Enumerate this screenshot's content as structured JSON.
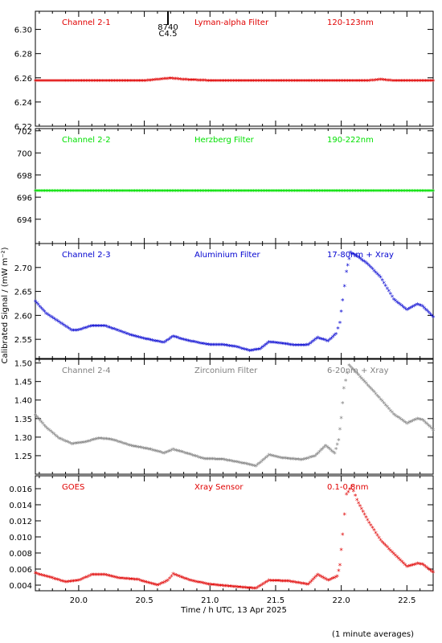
{
  "y_axis_title": "Calibrated Signal / (mW m⁻²)",
  "x_axis_title": "Time / h UTC, 13 Apr 2025",
  "footnote": "(1 minute averages)",
  "chart_data": {
    "type": "scatter",
    "x_range": [
      19.67,
      22.7
    ],
    "x_ticks": [
      "20.0",
      "20.5",
      "21.0",
      "21.5",
      "22.0",
      "22.5"
    ],
    "flare_marker": {
      "x": 20.68,
      "labels": [
        "8740",
        "C4.5"
      ]
    },
    "panels": [
      {
        "channel": "Channel 2-1",
        "filter": "Lyman-alpha Filter",
        "band": "120-123nm",
        "color": "#e00000",
        "ylim": [
          6.22,
          6.315
        ],
        "y_ticks": [
          "6.22",
          "6.24",
          "6.26",
          "6.28",
          "6.30"
        ],
        "points": [
          [
            19.67,
            6.257
          ],
          [
            20.0,
            6.257
          ],
          [
            20.5,
            6.257
          ],
          [
            20.6,
            6.258
          ],
          [
            20.7,
            6.259
          ],
          [
            20.8,
            6.258
          ],
          [
            21.0,
            6.257
          ],
          [
            21.5,
            6.257
          ],
          [
            22.0,
            6.257
          ],
          [
            22.2,
            6.257
          ],
          [
            22.3,
            6.258
          ],
          [
            22.4,
            6.257
          ],
          [
            22.7,
            6.257
          ]
        ]
      },
      {
        "channel": "Channel 2-2",
        "filter": "Herzberg Filter",
        "band": "190-222nm",
        "color": "#00e000",
        "ylim": [
          691.8,
          702.2
        ],
        "y_ticks": [
          "694",
          "696",
          "698",
          "700",
          "702"
        ],
        "points": [
          [
            19.67,
            696.5
          ],
          [
            20.5,
            696.5
          ],
          [
            21.0,
            696.5
          ],
          [
            21.5,
            696.5
          ],
          [
            22.0,
            696.5
          ],
          [
            22.7,
            696.5
          ]
        ]
      },
      {
        "channel": "Channel 2-3",
        "filter": "Aluminium Filter",
        "band": "17-80nm + Xray",
        "color": "#0000d0",
        "ylim": [
          2.51,
          2.75
        ],
        "y_ticks": [
          "2.55",
          "2.60",
          "2.65",
          "2.70"
        ],
        "points": [
          [
            19.67,
            2.628
          ],
          [
            19.75,
            2.603
          ],
          [
            19.85,
            2.585
          ],
          [
            19.95,
            2.567
          ],
          [
            20.0,
            2.568
          ],
          [
            20.1,
            2.577
          ],
          [
            20.2,
            2.577
          ],
          [
            20.3,
            2.567
          ],
          [
            20.4,
            2.557
          ],
          [
            20.55,
            2.547
          ],
          [
            20.65,
            2.542
          ],
          [
            20.72,
            2.555
          ],
          [
            20.8,
            2.548
          ],
          [
            20.9,
            2.542
          ],
          [
            21.0,
            2.537
          ],
          [
            21.1,
            2.537
          ],
          [
            21.2,
            2.533
          ],
          [
            21.3,
            2.525
          ],
          [
            21.38,
            2.528
          ],
          [
            21.45,
            2.543
          ],
          [
            21.55,
            2.54
          ],
          [
            21.65,
            2.536
          ],
          [
            21.75,
            2.537
          ],
          [
            21.82,
            2.552
          ],
          [
            21.9,
            2.545
          ],
          [
            21.96,
            2.56
          ],
          [
            21.99,
            2.583
          ],
          [
            22.01,
            2.63
          ],
          [
            22.04,
            2.69
          ],
          [
            22.07,
            2.73
          ],
          [
            22.12,
            2.722
          ],
          [
            22.2,
            2.706
          ],
          [
            22.3,
            2.678
          ],
          [
            22.4,
            2.632
          ],
          [
            22.5,
            2.61
          ],
          [
            22.58,
            2.622
          ],
          [
            22.62,
            2.618
          ],
          [
            22.7,
            2.595
          ]
        ]
      },
      {
        "channel": "Channel 2-4",
        "filter": "Zirconium Filter",
        "band": "6-20nm + Xray",
        "color": "#808080",
        "ylim": [
          1.2,
          1.51
        ],
        "y_ticks": [
          "1.25",
          "1.30",
          "1.35",
          "1.40",
          "1.45",
          "1.50"
        ],
        "points": [
          [
            19.67,
            1.358
          ],
          [
            19.75,
            1.325
          ],
          [
            19.85,
            1.295
          ],
          [
            19.95,
            1.28
          ],
          [
            20.05,
            1.285
          ],
          [
            20.15,
            1.295
          ],
          [
            20.25,
            1.292
          ],
          [
            20.4,
            1.275
          ],
          [
            20.55,
            1.265
          ],
          [
            20.65,
            1.255
          ],
          [
            20.72,
            1.265
          ],
          [
            20.82,
            1.255
          ],
          [
            20.95,
            1.24
          ],
          [
            21.1,
            1.238
          ],
          [
            21.25,
            1.228
          ],
          [
            21.35,
            1.22
          ],
          [
            21.45,
            1.25
          ],
          [
            21.55,
            1.242
          ],
          [
            21.7,
            1.237
          ],
          [
            21.8,
            1.247
          ],
          [
            21.88,
            1.275
          ],
          [
            21.95,
            1.255
          ],
          [
            21.98,
            1.29
          ],
          [
            22.0,
            1.35
          ],
          [
            22.02,
            1.43
          ],
          [
            22.06,
            1.492
          ],
          [
            22.12,
            1.47
          ],
          [
            22.25,
            1.42
          ],
          [
            22.4,
            1.36
          ],
          [
            22.5,
            1.335
          ],
          [
            22.58,
            1.348
          ],
          [
            22.62,
            1.345
          ],
          [
            22.7,
            1.318
          ]
        ]
      },
      {
        "channel": "GOES",
        "filter": "Xray Sensor",
        "band": "0.1-0.8nm",
        "color": "#e00000",
        "ylim": [
          0.0033,
          0.0176
        ],
        "y_ticks": [
          "0.004",
          "0.006",
          "0.008",
          "0.010",
          "0.012",
          "0.014",
          "0.016"
        ],
        "points": [
          [
            19.67,
            0.0054
          ],
          [
            19.8,
            0.0048
          ],
          [
            19.9,
            0.0043
          ],
          [
            20.0,
            0.0045
          ],
          [
            20.1,
            0.0052
          ],
          [
            20.2,
            0.0052
          ],
          [
            20.3,
            0.0048
          ],
          [
            20.45,
            0.0046
          ],
          [
            20.6,
            0.0039
          ],
          [
            20.68,
            0.0045
          ],
          [
            20.72,
            0.0053
          ],
          [
            20.85,
            0.0045
          ],
          [
            21.0,
            0.004
          ],
          [
            21.2,
            0.0037
          ],
          [
            21.35,
            0.0035
          ],
          [
            21.45,
            0.0045
          ],
          [
            21.6,
            0.0044
          ],
          [
            21.75,
            0.004
          ],
          [
            21.82,
            0.0052
          ],
          [
            21.9,
            0.0045
          ],
          [
            21.97,
            0.005
          ],
          [
            21.99,
            0.0064
          ],
          [
            22.01,
            0.0102
          ],
          [
            22.04,
            0.0152
          ],
          [
            22.08,
            0.0162
          ],
          [
            22.12,
            0.0145
          ],
          [
            22.2,
            0.012
          ],
          [
            22.3,
            0.0095
          ],
          [
            22.4,
            0.0078
          ],
          [
            22.5,
            0.0062
          ],
          [
            22.58,
            0.0066
          ],
          [
            22.62,
            0.0065
          ],
          [
            22.7,
            0.0055
          ]
        ]
      }
    ]
  }
}
